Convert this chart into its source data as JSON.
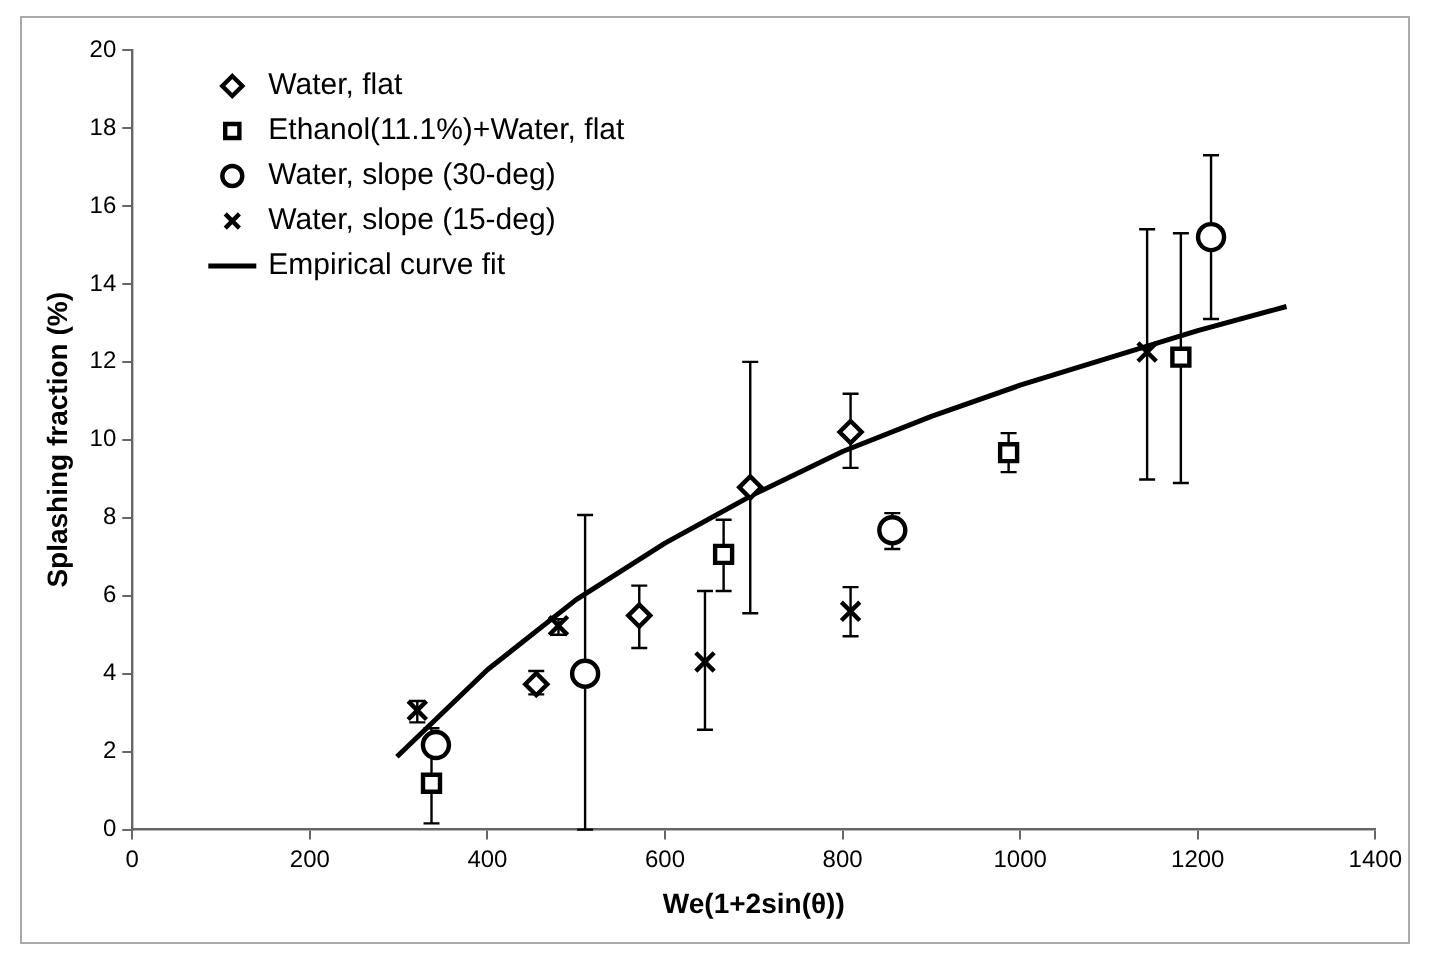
{
  "chart_data": {
    "type": "scatter",
    "xlabel": "We(1+2sin(θ))",
    "ylabel": "Splashing fraction (%)",
    "xlim": [
      0,
      1400
    ],
    "xticks": [
      0,
      200,
      400,
      600,
      800,
      1000,
      1200,
      1400
    ],
    "ylim": [
      0,
      20
    ],
    "yticks": [
      0,
      2,
      4,
      6,
      8,
      10,
      12,
      14,
      16,
      18,
      20
    ],
    "grid": false,
    "legend": "top left",
    "series": [
      {
        "name": "Water, flat",
        "color": "#000000",
        "marker": "diamond",
        "x": [
          455,
          571,
          696,
          809
        ],
        "values": [
          3.73,
          5.49,
          8.78,
          10.2
        ],
        "errors": [
          [
            3.47,
            4.07
          ],
          [
            4.66,
            6.26
          ],
          [
            5.55,
            12.0
          ],
          [
            9.28,
            11.18
          ]
        ]
      },
      {
        "name": "Ethanol(11.1%)+Water, flat",
        "color": "#000000",
        "marker": "square",
        "x": [
          337,
          666,
          987,
          1181
        ],
        "values": [
          1.19,
          7.06,
          9.67,
          12.12
        ],
        "errors": [
          [
            0.16,
            2.6
          ],
          [
            6.12,
            7.95
          ],
          [
            9.17,
            10.17
          ],
          [
            8.89,
            15.3
          ]
        ]
      },
      {
        "name": "Water, slope (30-deg)",
        "color": "#000000",
        "marker": "circle",
        "x": [
          342,
          510,
          856,
          1215
        ],
        "values": [
          2.17,
          4.0,
          7.68,
          15.2
        ],
        "errors": [
          null,
          [
            0,
            8.07
          ],
          [
            7.2,
            8.12
          ],
          [
            13.1,
            17.3
          ]
        ]
      },
      {
        "name": "Water, slope (15-deg)",
        "color": "#000000",
        "marker": "cross",
        "x": [
          321,
          480,
          645,
          809,
          1143
        ],
        "values": [
          3.06,
          5.23,
          4.3,
          5.6,
          12.25
        ],
        "errors": [
          [
            2.75,
            3.3
          ],
          [
            5.0,
            5.4
          ],
          [
            2.56,
            6.12
          ],
          [
            4.96,
            6.22
          ],
          [
            8.98,
            15.4
          ]
        ]
      },
      {
        "name": "Empirical curve fit",
        "type": "line",
        "color": "#000000",
        "marker": "none",
        "line_style": "solid",
        "x": [
          298,
          400,
          500,
          600,
          700,
          800,
          900,
          1000,
          1100,
          1200,
          1300
        ],
        "values": [
          1.87,
          4.1,
          5.9,
          7.35,
          8.6,
          9.7,
          10.6,
          11.4,
          12.1,
          12.8,
          13.42
        ]
      }
    ]
  }
}
